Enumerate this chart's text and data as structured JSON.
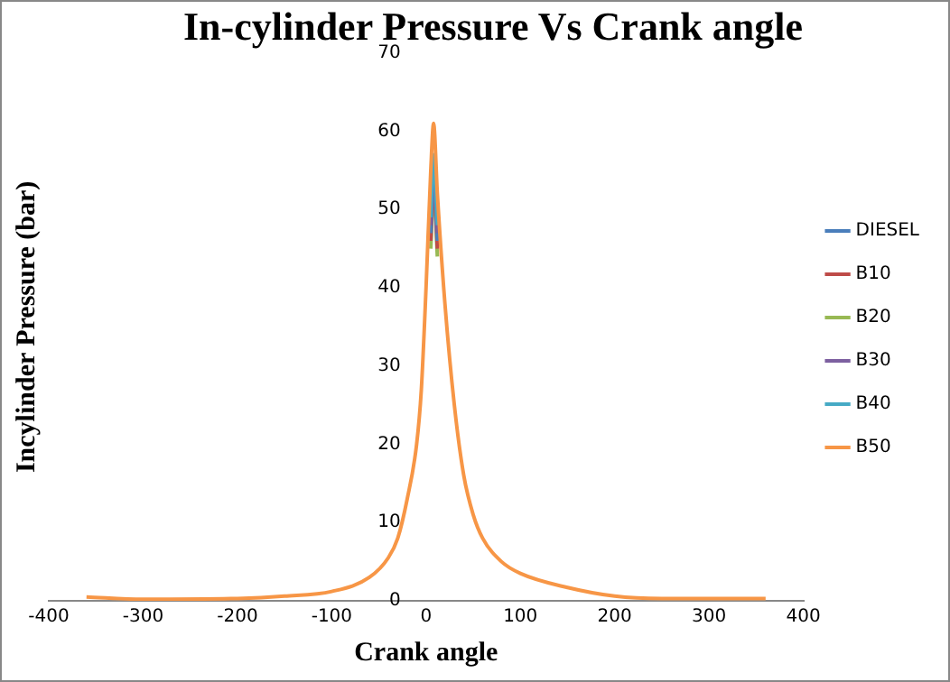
{
  "chart_data": {
    "type": "line",
    "title": "In-cylinder Pressure Vs Crank angle",
    "xlabel": "Crank angle",
    "ylabel": "Incylinder Pressure (bar)",
    "x": [
      -360,
      -300,
      -200,
      -150,
      -100,
      -60,
      -40,
      -30,
      -20,
      -10,
      -5,
      0,
      5,
      8,
      12,
      20,
      30,
      40,
      50,
      60,
      80,
      100,
      150,
      200,
      250,
      300,
      360
    ],
    "series": [
      {
        "name": "DIESEL",
        "color": "#4a7ebb",
        "values": [
          null,
          null,
          null,
          null,
          null,
          null,
          null,
          null,
          null,
          null,
          null,
          null,
          47,
          55,
          46,
          null,
          null,
          null,
          null,
          null,
          null,
          null,
          null,
          null,
          null,
          null,
          null
        ]
      },
      {
        "name": "B10",
        "color": "#be4b48",
        "values": [
          null,
          null,
          null,
          null,
          null,
          null,
          null,
          null,
          null,
          null,
          null,
          null,
          46,
          54,
          45,
          null,
          null,
          null,
          null,
          null,
          null,
          null,
          null,
          null,
          null,
          null,
          null
        ]
      },
      {
        "name": "B20",
        "color": "#98b954",
        "values": [
          null,
          null,
          null,
          null,
          null,
          null,
          null,
          null,
          null,
          null,
          null,
          null,
          45,
          53,
          44,
          null,
          null,
          null,
          null,
          null,
          null,
          null,
          null,
          null,
          null,
          null,
          null
        ]
      },
      {
        "name": "B30",
        "color": "#7d60a0",
        "values": [
          null,
          null,
          null,
          null,
          null,
          null,
          null,
          null,
          null,
          null,
          null,
          null,
          48,
          56,
          47,
          null,
          null,
          null,
          null,
          null,
          null,
          null,
          null,
          null,
          null,
          null,
          null
        ]
      },
      {
        "name": "B40",
        "color": "#46aac5",
        "values": [
          null,
          null,
          null,
          null,
          null,
          null,
          null,
          null,
          null,
          null,
          null,
          null,
          49,
          57,
          48,
          null,
          null,
          null,
          null,
          null,
          null,
          null,
          null,
          null,
          null,
          null,
          null
        ]
      },
      {
        "name": "B50",
        "color": "#f79646",
        "values": [
          0.5,
          0.2,
          0.3,
          0.6,
          1.2,
          3,
          5.5,
          8,
          13,
          20,
          27,
          40,
          55,
          61,
          52,
          38,
          25,
          16,
          11,
          8,
          5,
          3.5,
          1.7,
          0.6,
          0.3,
          0.3,
          0.3
        ]
      }
    ],
    "xlim": [
      -400,
      400
    ],
    "xticks": [
      -400,
      -300,
      -200,
      -100,
      0,
      100,
      200,
      300,
      400
    ],
    "ylim": [
      0,
      70
    ],
    "yticks": [
      0,
      10,
      20,
      30,
      40,
      50,
      60,
      70
    ],
    "grid": false,
    "legend": "right",
    "marker": "none",
    "line_style": "solid"
  }
}
